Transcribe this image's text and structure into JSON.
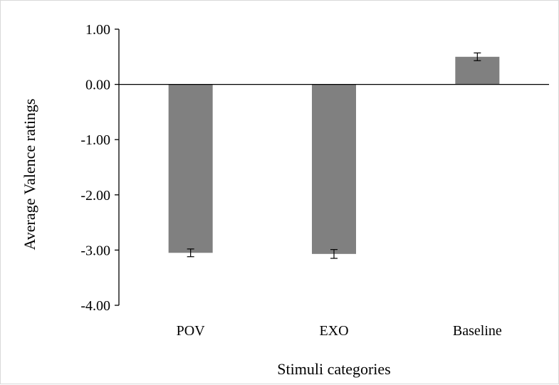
{
  "chart_data": {
    "type": "bar",
    "categories": [
      "POV",
      "EXO",
      "Baseline"
    ],
    "values": [
      -3.05,
      -3.07,
      0.5
    ],
    "error": [
      0.07,
      0.08,
      0.07
    ],
    "ylim": [
      -4.0,
      1.0
    ],
    "yticks": [
      1.0,
      0.0,
      -1.0,
      -2.0,
      -3.0,
      -4.0
    ],
    "ytick_labels": [
      "1.00",
      "0.00",
      "-1.00",
      "-2.00",
      "-3.00",
      "-4.00"
    ],
    "xlabel": "Stimuli categories",
    "ylabel": "Average Valence ratings",
    "grid": false,
    "bar_color": "#808080",
    "legend": null
  }
}
